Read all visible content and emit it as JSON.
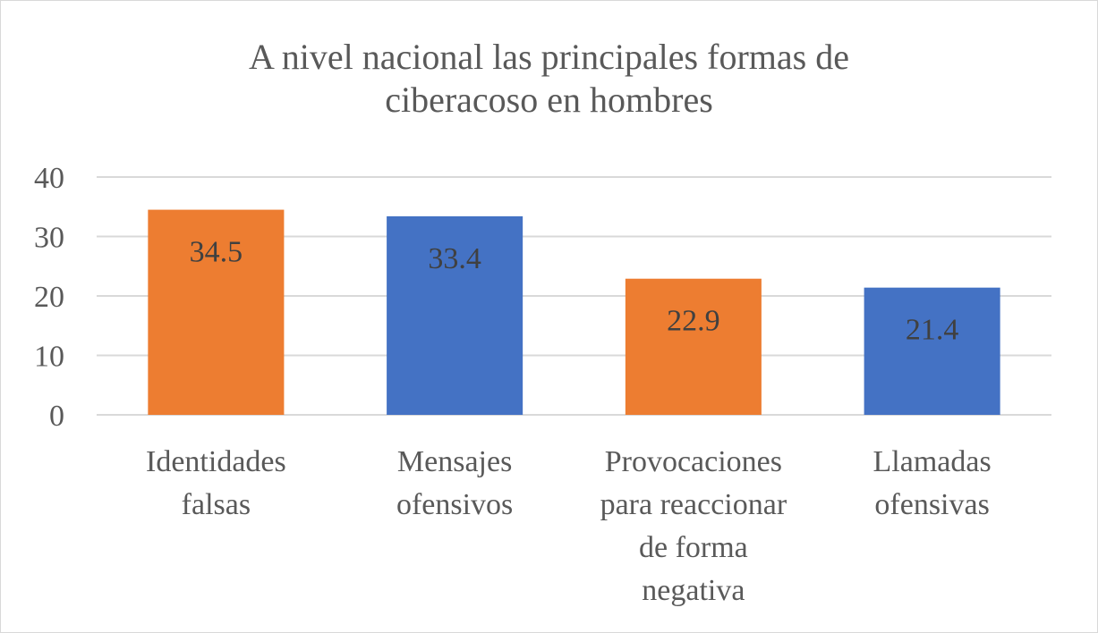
{
  "chart_data": {
    "type": "bar",
    "title_lines": [
      "A nivel nacional las principales formas de",
      "ciberacoso en hombres"
    ],
    "categories": [
      [
        "Identidades",
        "falsas"
      ],
      [
        "Mensajes",
        "ofensivos"
      ],
      [
        "Provocaciones",
        "para reaccionar",
        "de forma",
        "negativa"
      ],
      [
        "Llamadas",
        "ofensivas"
      ]
    ],
    "values": [
      34.5,
      33.4,
      22.9,
      21.4
    ],
    "data_labels": [
      "34.5",
      "33.4",
      "22.9",
      "21.4"
    ],
    "colors": [
      "#ED7D31",
      "#4472C4",
      "#ED7D31",
      "#4472C4"
    ],
    "yticks": [
      "0",
      "10",
      "20",
      "30",
      "40"
    ],
    "ylim": [
      0,
      40
    ],
    "grid": true,
    "legend": "none"
  }
}
